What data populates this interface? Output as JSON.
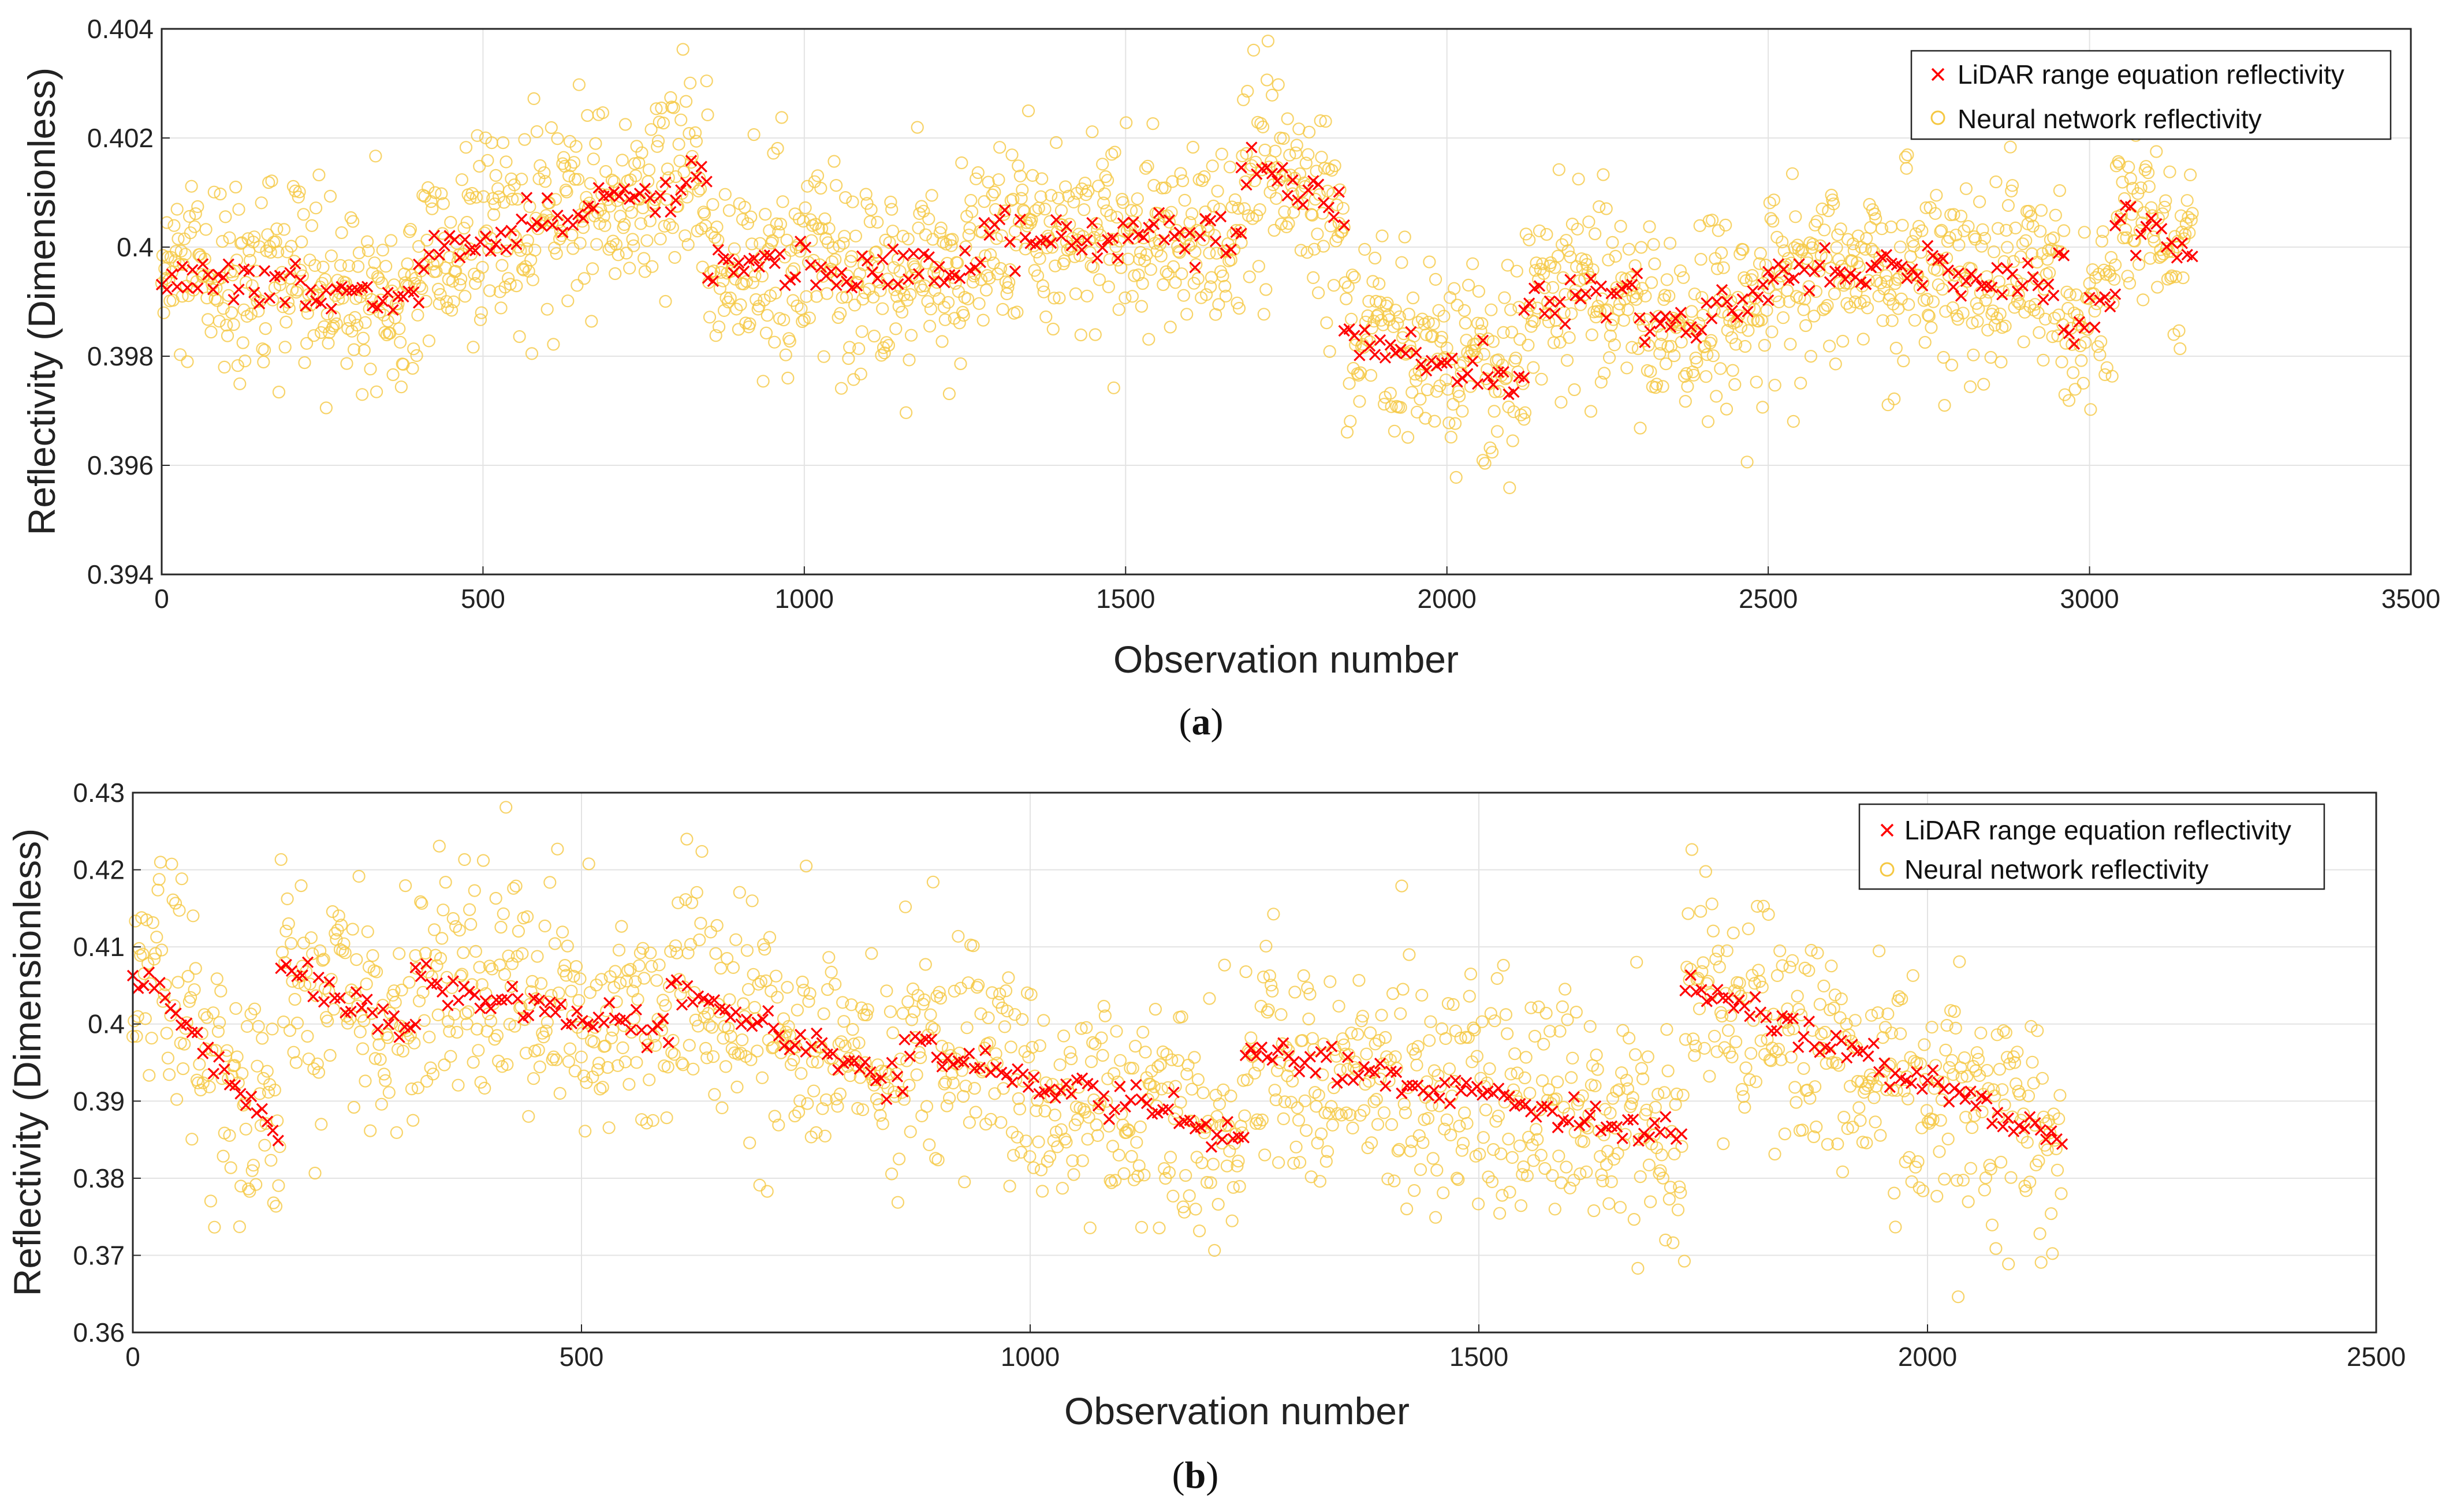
{
  "chart_data": [
    {
      "type": "scatter",
      "caption_open": "(",
      "caption": "a",
      "caption_close": ")",
      "xlabel": "Observation number",
      "ylabel": "Reflectivity (Dimensionless)",
      "xlim": [
        0,
        3500
      ],
      "ylim": [
        0.394,
        0.404
      ],
      "xticks": [
        0,
        500,
        1000,
        1500,
        2000,
        2500,
        3000,
        3500
      ],
      "xtick_labels": [
        "0",
        "500",
        "1000",
        "1500",
        "2000",
        "2500",
        "3000",
        "3500"
      ],
      "yticks": [
        0.394,
        0.396,
        0.398,
        0.4,
        0.402,
        0.404
      ],
      "ytick_labels": [
        "0.394",
        "0.396",
        "0.398",
        "0.4",
        "0.402",
        "0.404"
      ],
      "grid": true,
      "legend_position": "top-right",
      "series": [
        {
          "name": "LiDAR range equation reflectivity",
          "marker": "x",
          "color": "#ff0000",
          "segments": [
            {
              "x": [
                0,
                400
              ],
              "y": [
                0.3994,
                0.399
              ]
            },
            {
              "x": [
                400,
                850
              ],
              "y": [
                0.3998,
                0.4013
              ]
            },
            {
              "x": [
                850,
                1280
              ],
              "y": [
                0.3997,
                0.3995
              ]
            },
            {
              "x": [
                1280,
                1680
              ],
              "y": [
                0.4002,
                0.4002
              ]
            },
            {
              "x": [
                1680,
                1840
              ],
              "y": [
                0.4014,
                0.4007
              ]
            },
            {
              "x": [
                1840,
                2120
              ],
              "y": [
                0.3984,
                0.3975
              ]
            },
            {
              "x": [
                2120,
                2300
              ],
              "y": [
                0.399,
                0.3993
              ]
            },
            {
              "x": [
                2300,
                2500
              ],
              "y": [
                0.3986,
                0.399
              ]
            },
            {
              "x": [
                2500,
                2800
              ],
              "y": [
                0.3995,
                0.3997
              ]
            },
            {
              "x": [
                2800,
                2960
              ],
              "y": [
                0.3993,
                0.3995
              ]
            },
            {
              "x": [
                2960,
                3040
              ],
              "y": [
                0.3982,
                0.3993
              ]
            },
            {
              "x": [
                3040,
                3160
              ],
              "y": [
                0.4008,
                0.3997
              ]
            }
          ],
          "point_spacing": 8,
          "band_sd": 0.00022
        },
        {
          "name": "Neural network reflectivity",
          "marker": "o",
          "color": "#f5c842",
          "follows_series": 0,
          "point_spacing": 1.6,
          "noise_sd": 0.0009
        }
      ]
    },
    {
      "type": "scatter",
      "caption_open": "(",
      "caption": "b",
      "caption_close": ")",
      "xlabel": "Observation number",
      "ylabel": "Reflectivity (Dimensionless)",
      "xlim": [
        0,
        2500
      ],
      "ylim": [
        0.36,
        0.43
      ],
      "xticks": [
        0,
        500,
        1000,
        1500,
        2000,
        2500
      ],
      "xtick_labels": [
        "0",
        "500",
        "1000",
        "1500",
        "2000",
        "2500"
      ],
      "yticks": [
        0.36,
        0.37,
        0.38,
        0.39,
        0.4,
        0.41,
        0.42,
        0.43
      ],
      "ytick_labels": [
        "0.36",
        "0.37",
        "0.38",
        "0.39",
        "0.4",
        "0.41",
        "0.42",
        "0.43"
      ],
      "grid": true,
      "legend_position": "top-right",
      "series": [
        {
          "name": "LiDAR range equation reflectivity",
          "marker": "x",
          "color": "#ff0000",
          "segments": [
            {
              "x": [
                0,
                165
              ],
              "y": [
                0.407,
                0.385
              ]
            },
            {
              "x": [
                165,
                315
              ],
              "y": [
                0.407,
                0.399
              ]
            },
            {
              "x": [
                315,
                600
              ],
              "y": [
                0.406,
                0.398
              ]
            },
            {
              "x": [
                600,
                860
              ],
              "y": [
                0.405,
                0.392
              ]
            },
            {
              "x": [
                860,
                1240
              ],
              "y": [
                0.397,
                0.386
              ]
            },
            {
              "x": [
                1240,
                1730
              ],
              "y": [
                0.397,
                0.385
              ]
            },
            {
              "x": [
                1730,
                2150
              ],
              "y": [
                0.405,
                0.385
              ]
            }
          ],
          "point_spacing": 6,
          "band_sd": 0.0011
        },
        {
          "name": "Neural network reflectivity",
          "marker": "o",
          "color": "#f5c842",
          "follows_series": 0,
          "point_spacing": 1.4,
          "noise_sd": 0.0075
        }
      ]
    }
  ]
}
